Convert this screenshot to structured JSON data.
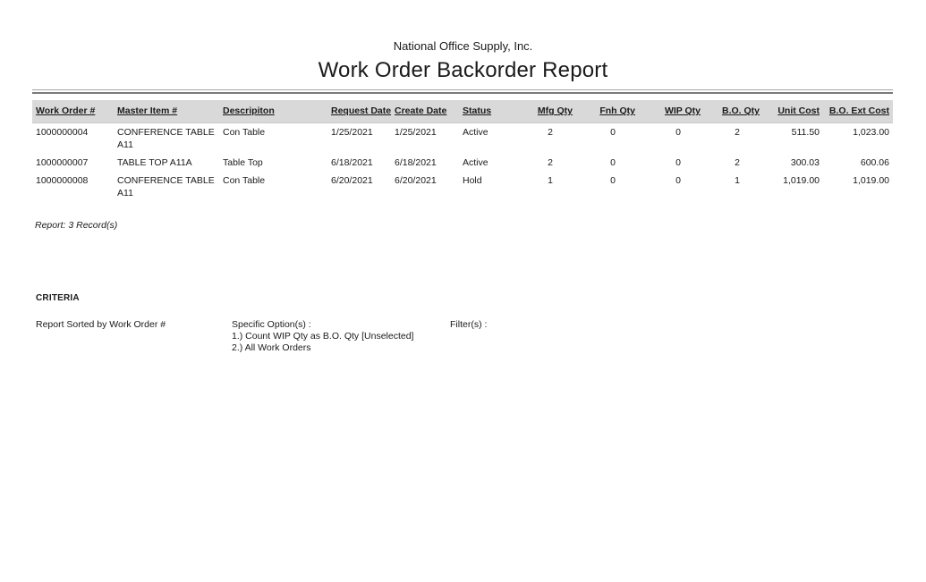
{
  "report": {
    "company_name": "National Office Supply, Inc.",
    "title": "Work Order Backorder Report",
    "record_count": "Report: 3 Record(s)"
  },
  "table": {
    "columns": [
      "Work Order #",
      "Master Item #",
      "Descripiton",
      "Request Date",
      "Create Date",
      "Status",
      "Mfg Qty",
      "Fnh Qty",
      "WIP Qty",
      "B.O. Qty",
      "Unit Cost",
      "B.O. Ext Cost"
    ],
    "rows": [
      [
        "1000000004",
        "CONFERENCE TABLE A11",
        "Con Table",
        "1/25/2021",
        "1/25/2021",
        "Active",
        "2",
        "0",
        "0",
        "2",
        "511.50",
        "1,023.00"
      ],
      [
        "1000000007",
        "TABLE TOP A11A",
        "Table Top",
        "6/18/2021",
        "6/18/2021",
        "Active",
        "2",
        "0",
        "0",
        "2",
        "300.03",
        "600.06"
      ],
      [
        "1000000008",
        "CONFERENCE TABLE A11",
        "Con Table",
        "6/20/2021",
        "6/20/2021",
        "Hold",
        "1",
        "0",
        "0",
        "1",
        "1,019.00",
        "1,019.00"
      ]
    ]
  },
  "criteria": {
    "heading": "CRITERIA",
    "sorted_by": "Report Sorted by Work Order #",
    "specific_options_label": "Specific Option(s) :",
    "specific_options": [
      "1.) Count WIP Qty as B.O. Qty [Unselected]",
      "2.) All Work Orders"
    ],
    "filters_label": "Filter(s) :"
  },
  "colors": {
    "header_row_bg": "#d9d9d9",
    "rule_light": "#a3a3a3",
    "rule_dark": "#7a7a7a",
    "text": "#1a1a1a"
  }
}
